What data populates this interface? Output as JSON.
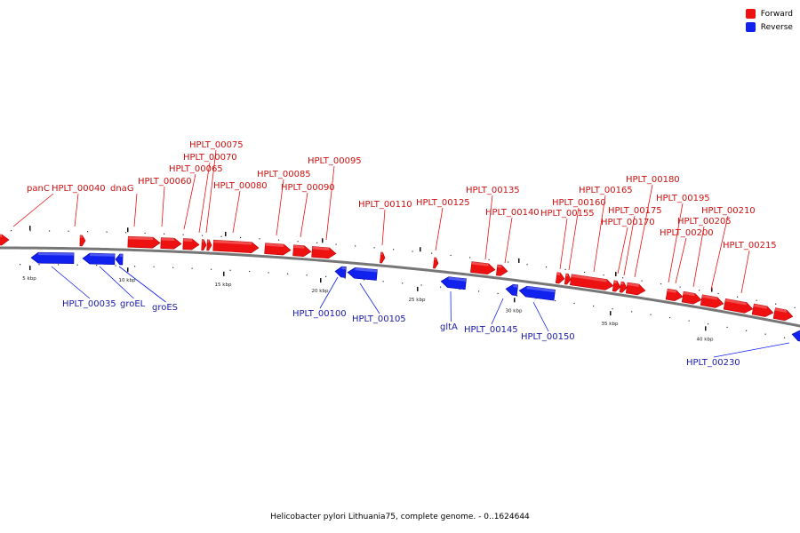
{
  "legend": {
    "forward": {
      "label": "Forward",
      "color": "#ee1111"
    },
    "reverse": {
      "label": "Reverse",
      "color": "#1122ee"
    }
  },
  "caption": "Helicobacter pylori Lithuania75, complete genome. - 0..1624644",
  "scale": [
    "5 kbp",
    "10 kbp",
    "15 kbp",
    "20 kbp",
    "25 kbp",
    "30 kbp",
    "35 kbp",
    "40 kbp"
  ],
  "forward_labels": [
    "panC",
    "HPLT_00040",
    "dnaG",
    "HPLT_00060",
    "HPLT_00065",
    "HPLT_00070",
    "HPLT_00075",
    "HPLT_00080",
    "HPLT_00085",
    "HPLT_00090",
    "HPLT_00095",
    "HPLT_00110",
    "HPLT_00125",
    "HPLT_00135",
    "HPLT_00140",
    "HPLT_00155",
    "HPLT_00160",
    "HPLT_00165",
    "HPLT_00170",
    "HPLT_00175",
    "HPLT_00180",
    "HPLT_00195",
    "HPLT_00200",
    "HPLT_00205",
    "HPLT_00210",
    "HPLT_00215"
  ],
  "reverse_labels": [
    "HPLT_00035",
    "groEL",
    "groES",
    "HPLT_00100",
    "HPLT_00105",
    "gltA",
    "HPLT_00145",
    "HPLT_00150",
    "HPLT_00230"
  ]
}
